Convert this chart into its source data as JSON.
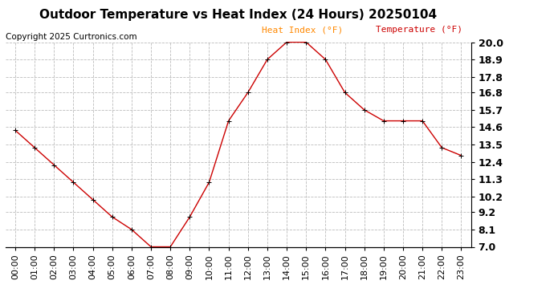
{
  "title": "Outdoor Temperature vs Heat Index (24 Hours) 20250104",
  "copyright": "Copyright 2025 Curtronics.com",
  "legend_heat_index": "Heat Index (°F)",
  "legend_temperature": "Temperature (°F)",
  "hours": [
    "00:00",
    "01:00",
    "02:00",
    "03:00",
    "04:00",
    "05:00",
    "06:00",
    "07:00",
    "08:00",
    "09:00",
    "10:00",
    "11:00",
    "12:00",
    "13:00",
    "14:00",
    "15:00",
    "16:00",
    "17:00",
    "18:00",
    "19:00",
    "20:00",
    "21:00",
    "22:00",
    "23:00"
  ],
  "temperature": [
    14.4,
    13.3,
    12.2,
    11.1,
    10.0,
    8.9,
    8.1,
    7.0,
    7.0,
    8.9,
    11.1,
    15.0,
    16.8,
    18.9,
    20.0,
    20.0,
    18.9,
    16.8,
    15.7,
    15.0,
    15.0,
    15.0,
    13.3,
    12.8
  ],
  "ylim_min": 7.0,
  "ylim_max": 20.0,
  "yticks": [
    7.0,
    8.1,
    9.2,
    10.2,
    11.3,
    12.4,
    13.5,
    14.6,
    15.7,
    16.8,
    17.8,
    18.9,
    20.0
  ],
  "line_color": "#cc0000",
  "marker": "+",
  "background_color": "#ffffff",
  "grid_color": "#bbbbbb",
  "title_color": "#000000",
  "copyright_color": "#000000",
  "legend_heat_index_color": "#ff8800",
  "legend_temperature_color": "#cc0000",
  "title_fontsize": 11,
  "axis_fontsize": 8,
  "copyright_fontsize": 7.5,
  "legend_fontsize": 8,
  "right_ytick_fontsize": 9
}
